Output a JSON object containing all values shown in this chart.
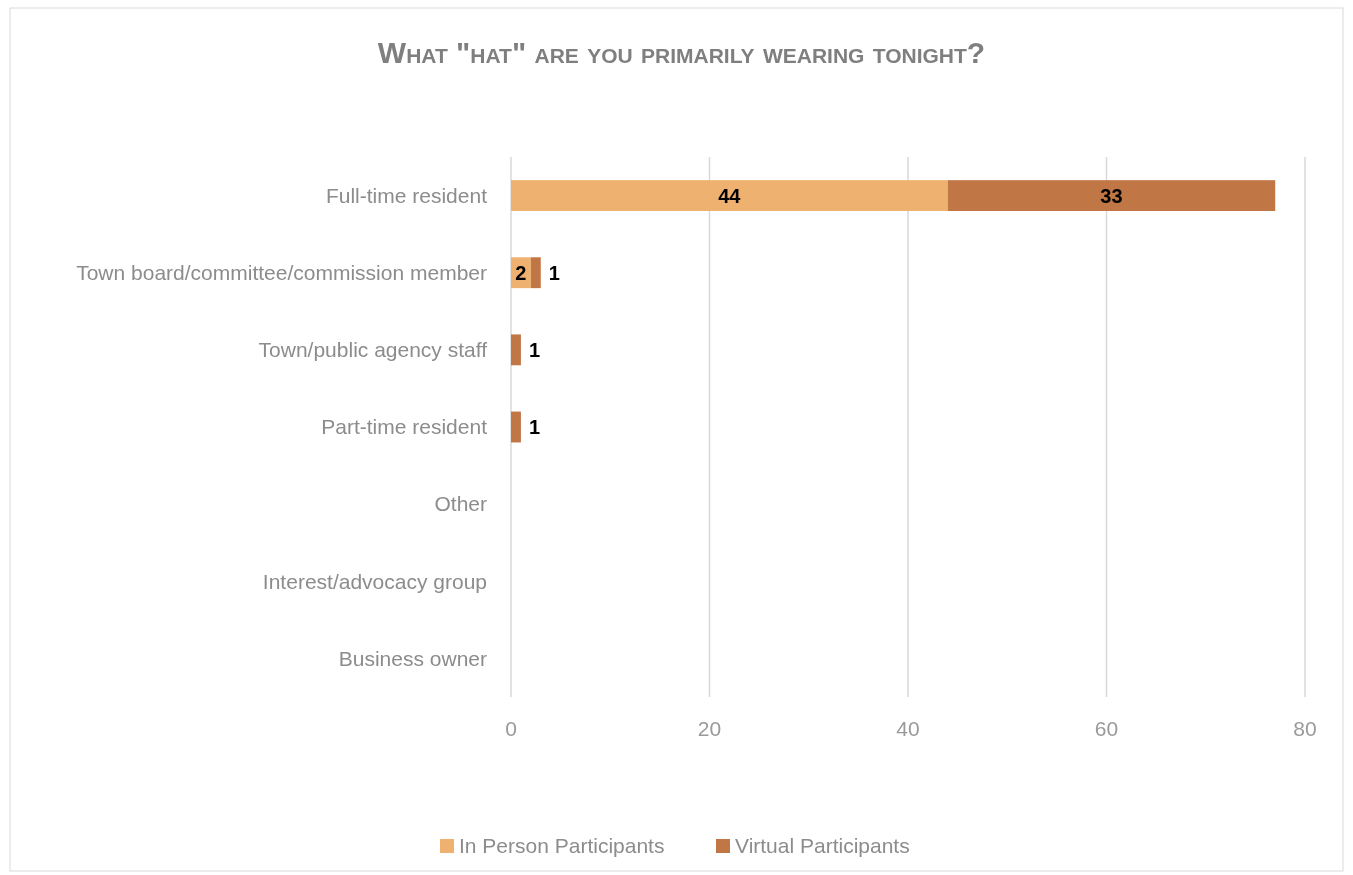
{
  "chart_data": {
    "type": "bar",
    "orientation": "horizontal",
    "stacked": true,
    "title": "What \"hat\" are you primarily wearing tonight?",
    "categories": [
      "Full-time resident",
      "Town board/committee/commission member",
      "Town/public agency staff",
      "Part-time resident",
      "Other",
      "Interest/advocacy group",
      "Business owner"
    ],
    "series": [
      {
        "name": "In Person Participants",
        "color": "#eeb170",
        "values": [
          44,
          2,
          0,
          0,
          0,
          0,
          0
        ],
        "value_labels": [
          "44",
          "2",
          null,
          null,
          null,
          null,
          null
        ]
      },
      {
        "name": "Virtual Participants",
        "color": "#c07745",
        "values": [
          33,
          1,
          1,
          1,
          0,
          0,
          0
        ],
        "value_labels": [
          "33",
          "1",
          "1",
          "1",
          null,
          null,
          null
        ]
      }
    ],
    "xlim": [
      0,
      80
    ],
    "xticks": [
      0,
      20,
      40,
      60,
      80
    ],
    "grid": "x",
    "legend": "bottom"
  }
}
